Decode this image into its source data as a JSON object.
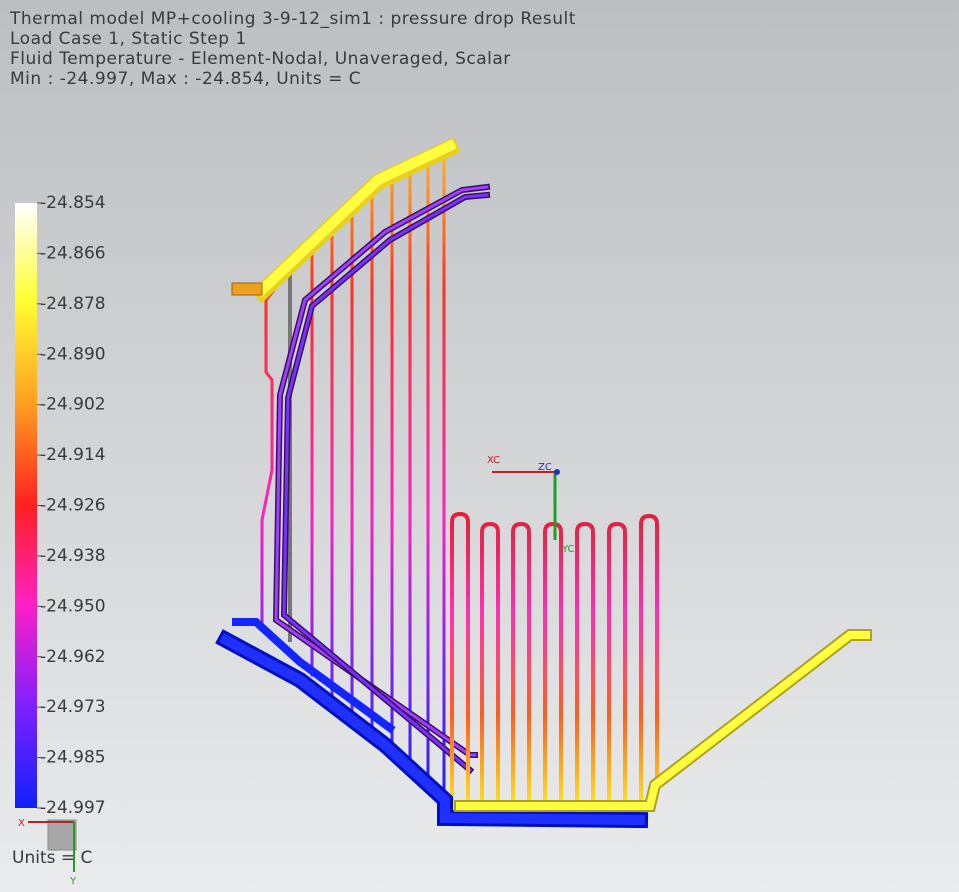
{
  "header": {
    "lines": [
      "Thermal model MP+cooling 3-9-12_sim1 : pressure drop Result",
      "Load Case 1, Static Step 1",
      "Fluid Temperature - Element-Nodal, Unaveraged, Scalar",
      "Min : -24.997, Max : -24.854, Units = C"
    ]
  },
  "legend": {
    "labels": [
      "-24.854",
      "-24.866",
      "-24.878",
      "-24.890",
      "-24.902",
      "-24.914",
      "-24.926",
      "-24.938",
      "-24.950",
      "-24.962",
      "-24.973",
      "-24.985",
      "-24.997"
    ],
    "units": "Units = C"
  },
  "triad": {
    "x": "XC",
    "z": "ZC",
    "y": "YC"
  },
  "view_triad": {
    "x": "X",
    "y": "Y"
  }
}
